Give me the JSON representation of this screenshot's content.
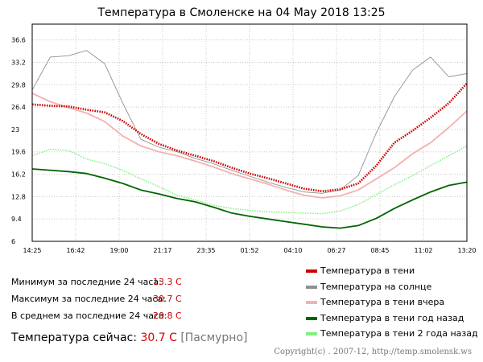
{
  "title": "Температура в Смоленске на 04 May 2018 13:25",
  "stats": [
    {
      "label": "Минимум за последние 24 часа:",
      "value": "13.3 C"
    },
    {
      "label": "Максимум за последние 24 часа:",
      "value": "30.7 C"
    },
    {
      "label": "В среднем за последние 24 часа:",
      "value": "20.8 C"
    }
  ],
  "current": {
    "label": "Температура сейчас:",
    "value": "30.7 C",
    "condition": "[Пасмурно]"
  },
  "copyright": "Copyright(c) . 2007-12, http://temp.smolensk.ws",
  "colors": {
    "background": "#ffffff",
    "grid": "#c8c8c8",
    "axis": "#000000",
    "value": "#d00000"
  },
  "chart_data": {
    "type": "line",
    "title": "Температура в Смоленске на 04 May 2018 13:25",
    "xlabel": "",
    "ylabel": "",
    "grid": true,
    "legend_position": "bottom-right",
    "xlim": [
      0,
      24
    ],
    "ylim": [
      6,
      39
    ],
    "x_ticks": [
      "14:25",
      "16:42",
      "19:00",
      "21:17",
      "23:35",
      "01:52",
      "04:10",
      "06:27",
      "08:45",
      "11:02",
      "13:20"
    ],
    "y_ticks": [
      "6",
      "9.4",
      "12.8",
      "16.2",
      "19.6",
      "23",
      "26.4",
      "29.8",
      "33.2",
      "36.6"
    ],
    "x": [
      0,
      1,
      2,
      3,
      4,
      5,
      6,
      7,
      8,
      9,
      10,
      11,
      12,
      13,
      14,
      15,
      16,
      17,
      18,
      19,
      20,
      21,
      22,
      23,
      24
    ],
    "series": [
      {
        "name": "Температура в тени",
        "color": "#cc0000",
        "style": "dots",
        "width": 2.6,
        "values": [
          26.8,
          26.6,
          26.5,
          26.0,
          25.6,
          24.3,
          22.3,
          20.8,
          19.8,
          19.0,
          18.2,
          17.2,
          16.3,
          15.6,
          14.8,
          14.0,
          13.6,
          13.9,
          14.8,
          17.5,
          21.0,
          22.8,
          24.8,
          27.0,
          30.0
        ]
      },
      {
        "name": "Температура на солнце",
        "color": "#909090",
        "style": "line",
        "width": 0.9,
        "values": [
          29.0,
          34.0,
          34.2,
          35.0,
          33.0,
          27.0,
          21.5,
          20.3,
          19.6,
          18.6,
          17.8,
          16.8,
          15.9,
          15.0,
          14.2,
          13.5,
          13.3,
          13.8,
          16.0,
          22.5,
          28.0,
          32.0,
          34.0,
          31.0,
          31.5
        ]
      },
      {
        "name": "Температура в тени вчера",
        "color": "#f4b0b0",
        "style": "line",
        "width": 1.8,
        "values": [
          28.5,
          27.2,
          26.3,
          25.5,
          24.2,
          22.0,
          20.5,
          19.6,
          19.0,
          18.2,
          17.3,
          16.3,
          15.5,
          14.7,
          13.8,
          13.0,
          12.6,
          12.9,
          13.8,
          15.5,
          17.2,
          19.3,
          21.0,
          23.3,
          25.8
        ]
      },
      {
        "name": "Температура в тени год назад",
        "color": "#006400",
        "style": "line",
        "width": 1.8,
        "values": [
          17.0,
          16.8,
          16.6,
          16.3,
          15.6,
          14.8,
          13.8,
          13.2,
          12.5,
          12.0,
          11.2,
          10.3,
          9.8,
          9.4,
          9.0,
          8.6,
          8.2,
          8.0,
          8.4,
          9.5,
          11.0,
          12.3,
          13.5,
          14.5,
          15.0
        ]
      },
      {
        "name": "Температура в тени 2 года назад",
        "color": "#80f080",
        "style": "dots",
        "width": 1.4,
        "values": [
          19.0,
          20.0,
          19.8,
          18.5,
          17.8,
          16.8,
          15.5,
          14.3,
          13.0,
          12.3,
          11.5,
          11.0,
          10.7,
          10.5,
          10.4,
          10.3,
          10.2,
          10.6,
          11.6,
          13.1,
          14.6,
          16.0,
          17.5,
          19.0,
          20.5
        ]
      }
    ]
  }
}
